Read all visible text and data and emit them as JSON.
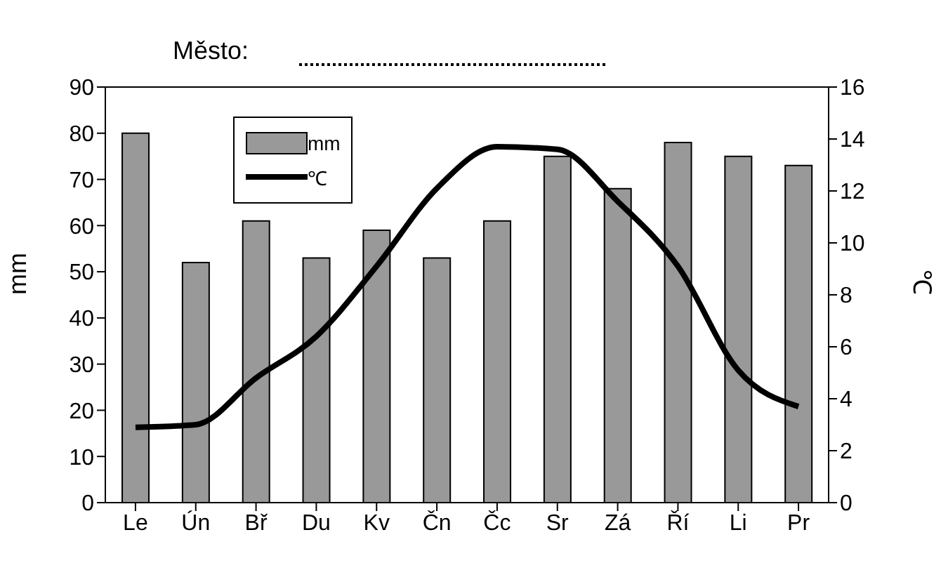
{
  "chart_data": {
    "type": "bar",
    "title": "Město:",
    "categories": [
      "Le",
      "Ún",
      "Bř",
      "Du",
      "Kv",
      "Čn",
      "Čc",
      "Sr",
      "Zá",
      "Ří",
      "Li",
      "Pr"
    ],
    "ylabel": "mm",
    "y2label": "℃",
    "ylim": [
      0,
      90
    ],
    "yticks": [
      0,
      10,
      20,
      30,
      40,
      50,
      60,
      70,
      80,
      90
    ],
    "y2lim": [
      0,
      16
    ],
    "y2ticks": [
      0,
      2,
      4,
      6,
      8,
      10,
      12,
      14,
      16
    ],
    "grid": false,
    "legend": "top left",
    "series": [
      {
        "name": "mm",
        "color": "#999999",
        "values": [
          80,
          52,
          61,
          53,
          59,
          53,
          61,
          75,
          68,
          78,
          75,
          73
        ]
      },
      {
        "name": "℃",
        "type": "line",
        "axis": "y2",
        "color": "#000000",
        "values": [
          2.9,
          3.0,
          4.8,
          6.4,
          9.1,
          12.1,
          13.7,
          13.6,
          11.6,
          9.1,
          5.1,
          3.7
        ]
      }
    ]
  }
}
